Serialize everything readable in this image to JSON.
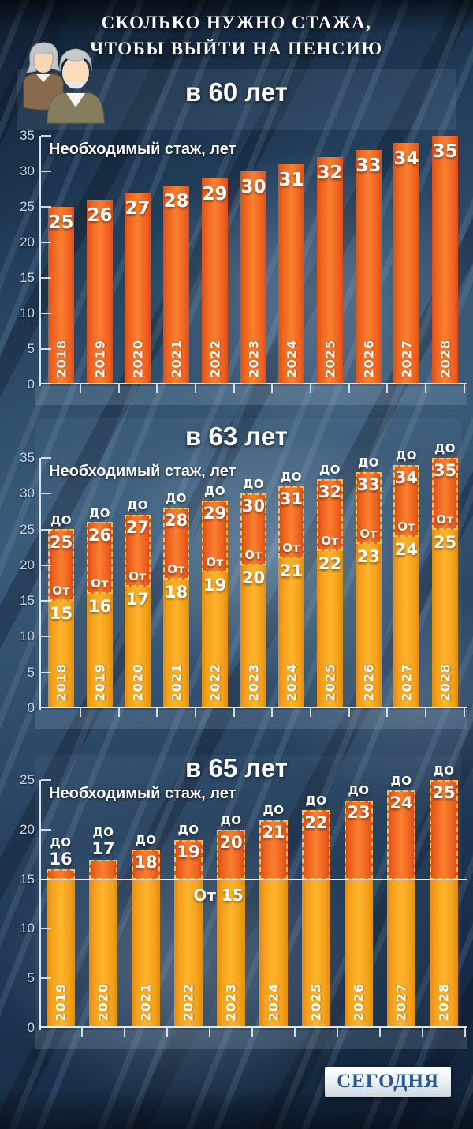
{
  "header": {
    "title_line1": "СКОЛЬКО НУЖНО СТАЖА,",
    "title_line2": "ЧТОБЫ ВЫЙТИ НА ПЕНСИЮ",
    "icon": "elderly-couple-icon"
  },
  "labels": {
    "upper_bound_word": "ДО",
    "lower_bound_word": "От"
  },
  "colors": {
    "bar_orange": "#f4641f",
    "bar_yellow": "#f7a61f",
    "dashed_border": "#ffbf45",
    "background_navy": "#23405c",
    "axis": "#ebf2f8",
    "tick_text": "#c9d6e2",
    "logo_text": "#265a8e"
  },
  "chart_data": [
    {
      "type": "bar",
      "title": "в 60 лет",
      "note": "Необходимый стаж, лет",
      "categories": [
        "2018",
        "2019",
        "2020",
        "2021",
        "2022",
        "2023",
        "2024",
        "2025",
        "2026",
        "2027",
        "2028"
      ],
      "values": [
        25,
        26,
        27,
        28,
        29,
        30,
        31,
        32,
        33,
        34,
        35
      ],
      "ylim": [
        0,
        35
      ],
      "yticks": [
        0,
        5,
        10,
        15,
        20,
        25,
        30,
        35
      ],
      "grid": false,
      "legend": "none"
    },
    {
      "type": "stacked-bar",
      "title": "в 63 лет",
      "note": "Необходимый стаж, лет",
      "categories": [
        "2018",
        "2019",
        "2020",
        "2021",
        "2022",
        "2023",
        "2024",
        "2025",
        "2026",
        "2027",
        "2028"
      ],
      "series": [
        {
          "name": "От",
          "values": [
            15,
            16,
            17,
            18,
            19,
            20,
            21,
            22,
            23,
            24,
            25
          ]
        },
        {
          "name": "ДО",
          "values": [
            25,
            26,
            27,
            28,
            29,
            30,
            31,
            32,
            33,
            34,
            35
          ]
        }
      ],
      "series_note": "ДО values are bar totals; orange segment spans От→ДО",
      "ylim": [
        0,
        35
      ],
      "yticks": [
        0,
        5,
        10,
        15,
        20,
        25,
        30,
        35
      ],
      "grid": false,
      "legend": "none"
    },
    {
      "type": "stacked-bar",
      "title": "в 65 лет",
      "note": "Необходимый стаж, лет",
      "categories": [
        "2019",
        "2020",
        "2021",
        "2022",
        "2023",
        "2024",
        "2025",
        "2026",
        "2027",
        "2028"
      ],
      "series": [
        {
          "name": "От",
          "values": [
            15,
            15,
            15,
            15,
            15,
            15,
            15,
            15,
            15,
            15
          ]
        },
        {
          "name": "ДО",
          "values": [
            16,
            17,
            18,
            19,
            20,
            21,
            22,
            23,
            24,
            25
          ]
        }
      ],
      "series_note": "ДО values are bar totals; orange segment spans От→ДО",
      "annotation": "От 15",
      "reference_line": 15,
      "ylim": [
        0,
        25
      ],
      "yticks": [
        0,
        5,
        10,
        15,
        20,
        25
      ],
      "grid": false,
      "legend": "none"
    }
  ],
  "footer": {
    "logo_text": "СЕГОДНЯ"
  }
}
